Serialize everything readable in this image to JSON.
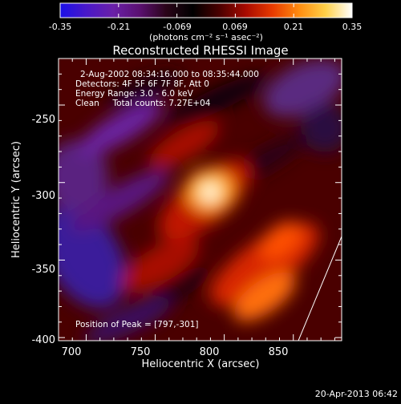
{
  "colorbar": {
    "ticks": [
      "-0.35",
      "-0.21",
      "-0.069",
      "0.069",
      "0.21",
      "0.35"
    ],
    "units": "(photons cm⁻² s⁻¹ asec⁻²)",
    "range": [
      -0.35,
      0.35
    ],
    "colors": [
      "#1a10e8",
      "#4a18c8",
      "#6a20a8",
      "#5a1070",
      "#2a0418",
      "#000000",
      "#4a0000",
      "#a80a00",
      "#e83a00",
      "#ff8c10",
      "#ffd048",
      "#ffffff"
    ]
  },
  "image": {
    "title": "Reconstructed RHESSI Image",
    "info_lines": [
      "2-Aug-2002 08:34:16.000 to 08:35:44.000",
      "Detectors: 4F 5F 6F 7F 8F, Att 0",
      "Energy Range: 3.0 - 6.0 keV",
      "Clean     Total counts: 7.27E+04"
    ],
    "peak_text": "Position of Peak = [797,-301]",
    "xlabel": "Heliocentric X (arcsec)",
    "ylabel": "Heliocentric Y (arcsec)",
    "xlim": [
      680,
      885
    ],
    "ylim": [
      -402,
      -220
    ],
    "xticks": [
      700,
      750,
      800,
      850
    ],
    "yticks": [
      -250,
      -300,
      -350,
      -400
    ],
    "xtick_labels": [
      "700",
      "750",
      "800",
      "850"
    ],
    "ytick_labels": [
      "-250",
      "-300",
      "-350",
      "-400"
    ]
  },
  "footer": {
    "date": "20-Apr-2013 06:42"
  }
}
